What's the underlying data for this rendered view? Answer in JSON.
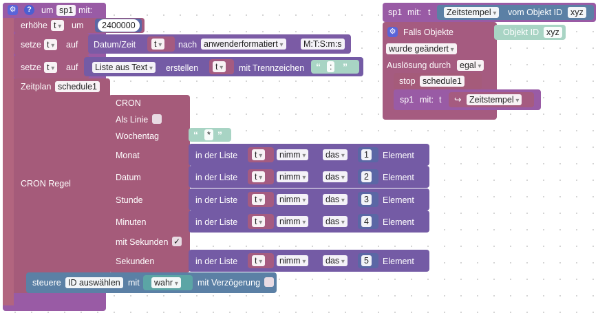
{
  "func": {
    "um_label": "um",
    "name": "sp1",
    "mit_label": "mit:",
    "param": "t"
  },
  "erhoehe": {
    "label": "erhöhe",
    "var": "t",
    "um_label": "um",
    "value": "2400000"
  },
  "setze1": {
    "label": "setze",
    "var": "t",
    "auf_label": "auf",
    "datum_label": "Datum/Zeit",
    "datum_var": "t",
    "nach_label": "nach",
    "format_select": "anwenderformatiert",
    "format_value": "M:T:S:m:s"
  },
  "setze2": {
    "label": "setze",
    "var": "t",
    "auf_label": "auf",
    "liste_select": "Liste aus Text",
    "erstellen_label": "erstellen",
    "liste_var": "t",
    "trenn_label": "mit Trennzeichen",
    "trenn_value": ":"
  },
  "zeitplan": {
    "label": "Zeitplan",
    "name": "schedule1",
    "cron_regel_label": "CRON Regel"
  },
  "cron": {
    "title": "CRON",
    "als_linie_label": "Als Linie",
    "wochentag_label": "Wochentag",
    "wochentag_value": "*",
    "mit_sekunden_label": "mit Sekunden",
    "mit_sekunden_check": "✓",
    "rows": [
      {
        "label": "Monat",
        "in_liste": "in der Liste",
        "var": "t",
        "nimm": "nimm",
        "das": "das",
        "index": "1",
        "element": "Element"
      },
      {
        "label": "Datum",
        "in_liste": "in der Liste",
        "var": "t",
        "nimm": "nimm",
        "das": "das",
        "index": "2",
        "element": "Element"
      },
      {
        "label": "Stunde",
        "in_liste": "in der Liste",
        "var": "t",
        "nimm": "nimm",
        "das": "das",
        "index": "3",
        "element": "Element"
      },
      {
        "label": "Minuten",
        "in_liste": "in der Liste",
        "var": "t",
        "nimm": "nimm",
        "das": "das",
        "index": "4",
        "element": "Element"
      }
    ],
    "sekunden_row": {
      "label": "Sekunden",
      "in_liste": "in der Liste",
      "var": "t",
      "nimm": "nimm",
      "das": "das",
      "index": "5",
      "element": "Element"
    }
  },
  "steuere": {
    "label": "steuere",
    "id_select": "ID auswählen",
    "mit_label": "mit",
    "value_select": "wahr",
    "verz_label": "mit Verzögerung"
  },
  "right": {
    "call_name": "sp1",
    "call_mit": "mit:",
    "call_param": "t",
    "zeitstempel_select": "Zeitstempel",
    "vom_objekt_label": "vom Objekt ID",
    "objekt_id_value": "xyz",
    "falls_label": "Falls Objekte",
    "objekt_id_label": "Objekt ID",
    "objekt_id_value2": "xyz",
    "wurde_select": "wurde geändert",
    "ausloesung_label": "Auslösung durch",
    "ausloesung_select": "egal",
    "stop_label": "stop",
    "stop_name": "schedule1",
    "inner_call_name": "sp1",
    "inner_call_mit": "mit:",
    "inner_call_param": "t",
    "inner_zeitstempel_select": "Zeitstempel"
  },
  "colors": {
    "procedure": "#995ba5",
    "variable": "#a55b80",
    "text": "#7b5ba5",
    "list": "#745ba5",
    "textlit": "#5ba58c",
    "number": "#5b67a5",
    "control": "#5b80a5"
  }
}
